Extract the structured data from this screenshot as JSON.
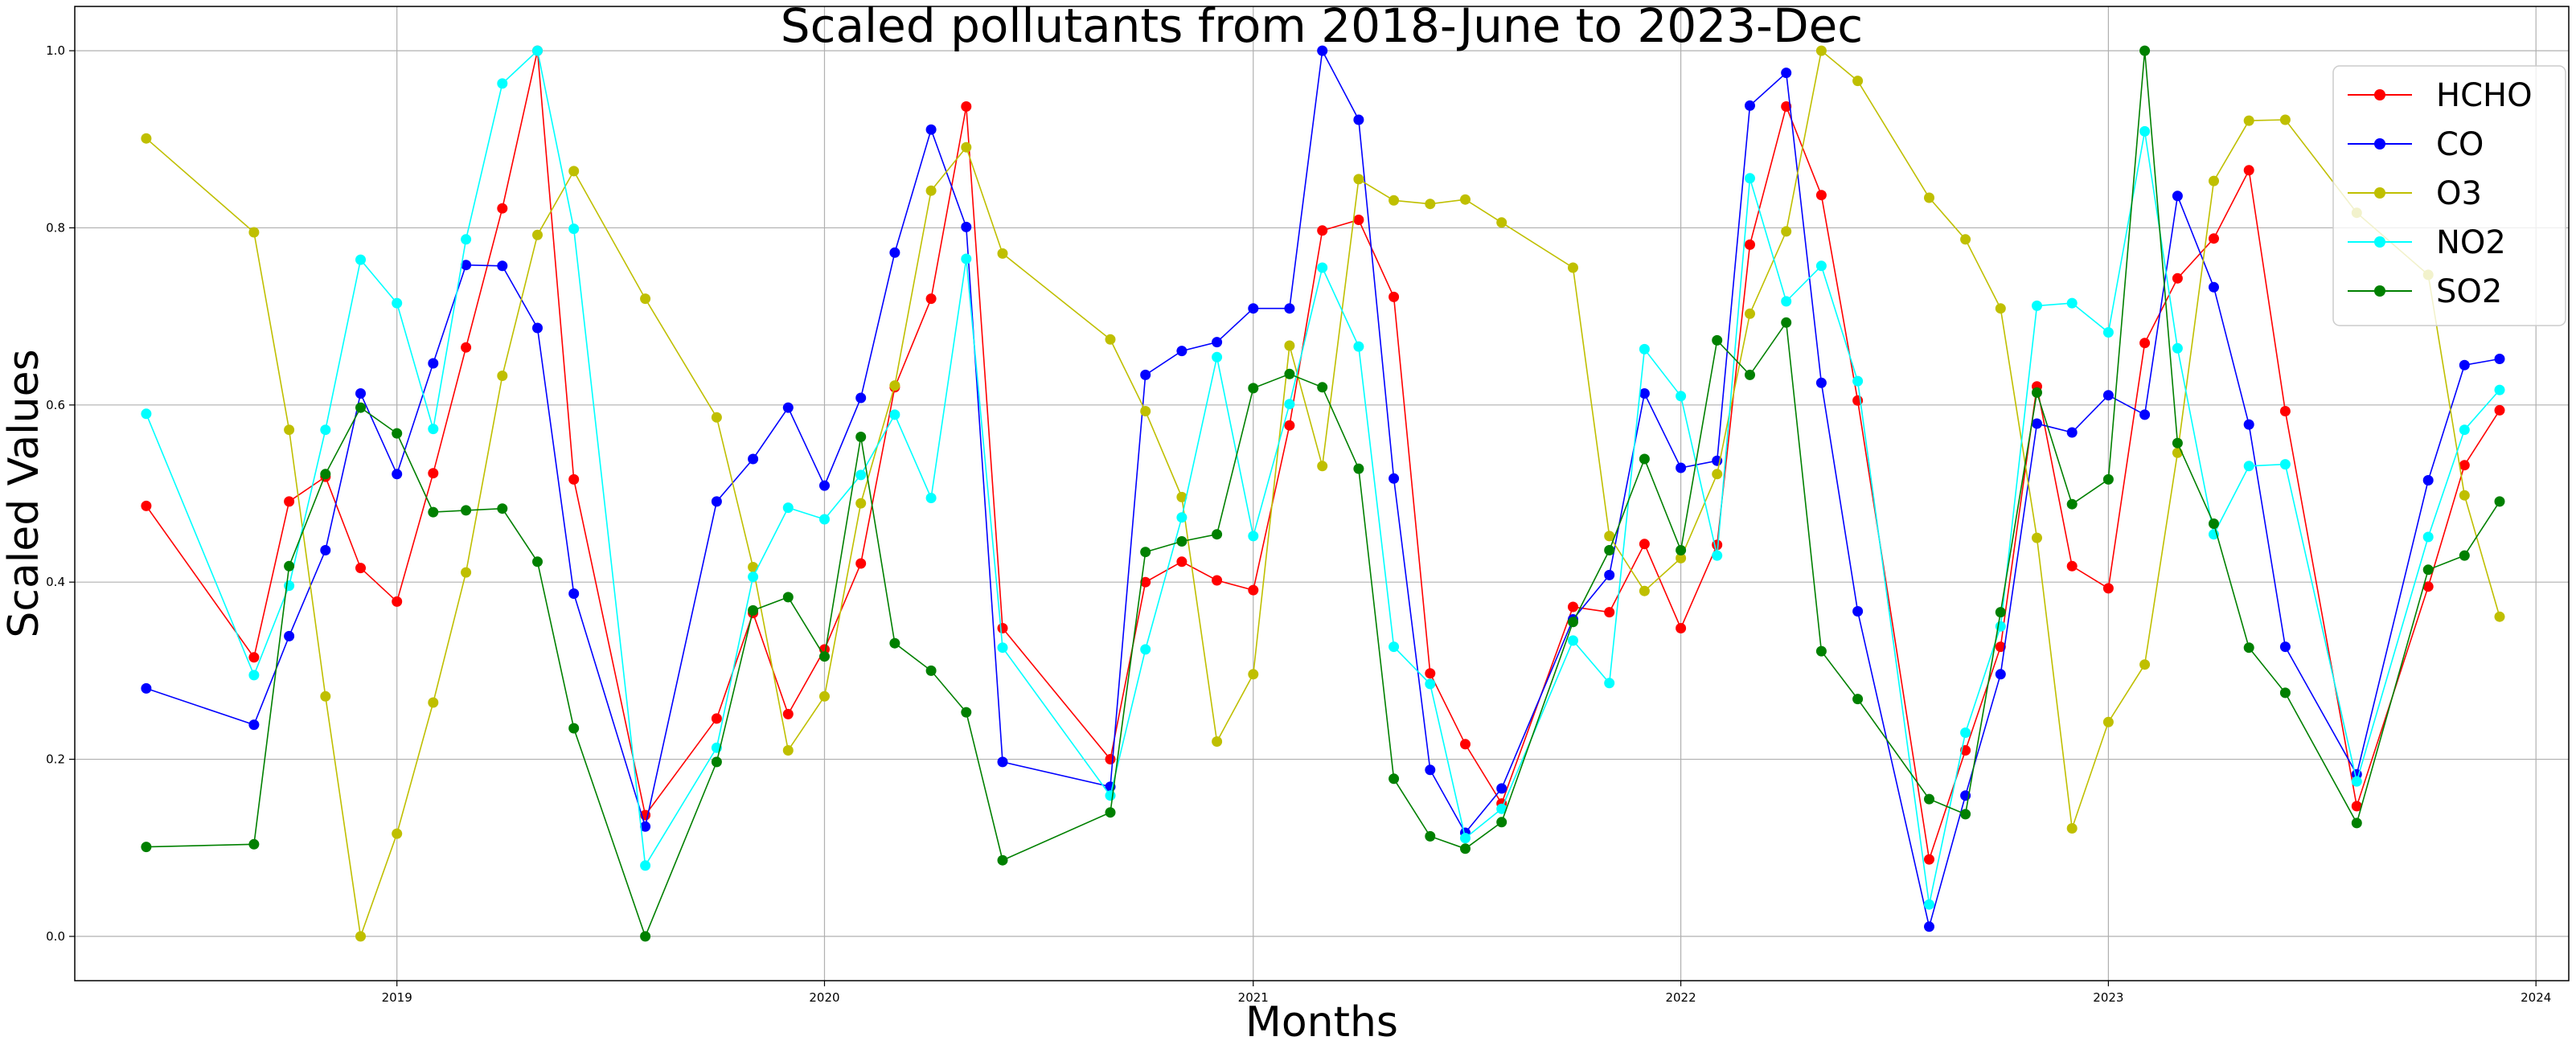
{
  "chart_data": {
    "type": "line",
    "title": "Scaled pollutants from 2018-June to 2023-Dec",
    "xlabel": "Months",
    "ylabel": "Scaled Values",
    "x_axis": "date",
    "xlim": [
      "2018-04-01",
      "2024-01-29"
    ],
    "ylim": [
      -0.05,
      1.05
    ],
    "x_ticks": [
      "2019",
      "2020",
      "2021",
      "2022",
      "2023",
      "2024"
    ],
    "y_ticks": [
      "0.0",
      "0.2",
      "0.4",
      "0.6",
      "0.8",
      "1.0"
    ],
    "grid": true,
    "legend_position": "top-right",
    "x": [
      "2018-06-01",
      "2018-09-01",
      "2018-10-01",
      "2018-11-01",
      "2018-12-01",
      "2019-01-01",
      "2019-02-01",
      "2019-03-01",
      "2019-04-01",
      "2019-05-01",
      "2019-06-01",
      "2019-08-01",
      "2019-10-01",
      "2019-11-01",
      "2019-12-01",
      "2020-01-01",
      "2020-02-01",
      "2020-03-01",
      "2020-04-01",
      "2020-05-01",
      "2020-06-01",
      "2020-09-01",
      "2020-10-01",
      "2020-11-01",
      "2020-12-01",
      "2021-01-01",
      "2021-02-01",
      "2021-03-01",
      "2021-04-01",
      "2021-05-01",
      "2021-06-01",
      "2021-07-01",
      "2021-08-01",
      "2021-10-01",
      "2021-11-01",
      "2021-12-01",
      "2022-01-01",
      "2022-02-01",
      "2022-03-01",
      "2022-04-01",
      "2022-05-01",
      "2022-06-01",
      "2022-08-01",
      "2022-09-01",
      "2022-10-01",
      "2022-11-01",
      "2022-12-01",
      "2023-01-01",
      "2023-02-01",
      "2023-03-01",
      "2023-04-01",
      "2023-05-01",
      "2023-06-01",
      "2023-08-01",
      "2023-10-01",
      "2023-11-01",
      "2023-12-01"
    ],
    "series": [
      {
        "name": "HCHO",
        "color": "#ff0000",
        "values": [
          0.486,
          0.315,
          0.491,
          0.519,
          0.416,
          0.378,
          0.523,
          0.665,
          0.822,
          1.0,
          0.516,
          0.137,
          0.246,
          0.365,
          0.251,
          0.324,
          0.421,
          0.62,
          0.72,
          0.937,
          0.348,
          0.2,
          0.4,
          0.423,
          0.402,
          0.391,
          0.577,
          0.797,
          0.809,
          0.722,
          0.297,
          0.217,
          0.15,
          0.372,
          0.366,
          0.443,
          0.348,
          0.442,
          0.781,
          0.937,
          0.837,
          0.605,
          0.087,
          0.21,
          0.327,
          0.621,
          0.418,
          0.393,
          0.67,
          0.743,
          0.788,
          0.865,
          0.593,
          0.147,
          0.395,
          0.532,
          0.594
        ]
      },
      {
        "name": "CO",
        "color": "#0000ff",
        "values": [
          0.28,
          0.239,
          0.339,
          0.436,
          0.613,
          0.522,
          0.647,
          0.758,
          0.757,
          0.687,
          0.387,
          0.124,
          0.491,
          0.539,
          0.597,
          0.509,
          0.608,
          0.772,
          0.911,
          0.801,
          0.197,
          0.169,
          0.634,
          0.661,
          0.671,
          0.709,
          0.709,
          1.0,
          0.922,
          0.517,
          0.188,
          0.117,
          0.167,
          0.358,
          0.408,
          0.613,
          0.529,
          0.537,
          0.938,
          0.975,
          0.625,
          0.367,
          0.011,
          0.159,
          0.296,
          0.579,
          0.569,
          0.611,
          0.589,
          0.836,
          0.733,
          0.578,
          0.327,
          0.183,
          0.515,
          0.645,
          0.652
        ]
      },
      {
        "name": "O3",
        "color": "#bfbf00",
        "values": [
          0.901,
          0.795,
          0.572,
          0.271,
          0.0,
          0.116,
          0.264,
          0.411,
          0.633,
          0.792,
          0.864,
          0.72,
          0.586,
          0.417,
          0.21,
          0.271,
          0.489,
          0.622,
          0.842,
          0.891,
          0.771,
          0.674,
          0.593,
          0.496,
          0.22,
          0.296,
          0.667,
          0.531,
          0.855,
          0.831,
          0.827,
          0.832,
          0.806,
          0.755,
          0.452,
          0.39,
          0.427,
          0.522,
          0.703,
          0.796,
          1.0,
          0.966,
          0.834,
          0.787,
          0.709,
          0.45,
          0.122,
          0.242,
          0.307,
          0.546,
          0.853,
          0.921,
          0.922,
          0.817,
          0.747,
          0.498,
          0.361
        ]
      },
      {
        "name": "NO2",
        "color": "#00ffff",
        "values": [
          0.59,
          0.295,
          0.396,
          0.572,
          0.764,
          0.715,
          0.573,
          0.787,
          0.963,
          1.0,
          0.799,
          0.08,
          0.213,
          0.406,
          0.484,
          0.471,
          0.521,
          0.589,
          0.495,
          0.765,
          0.326,
          0.159,
          0.324,
          0.473,
          0.654,
          0.452,
          0.601,
          0.755,
          0.666,
          0.327,
          0.285,
          0.111,
          0.144,
          0.334,
          0.286,
          0.663,
          0.61,
          0.43,
          0.856,
          0.717,
          0.757,
          0.627,
          0.036,
          0.23,
          0.35,
          0.712,
          0.715,
          0.682,
          0.909,
          0.664,
          0.454,
          0.531,
          0.533,
          0.175,
          0.451,
          0.572,
          0.617
        ]
      },
      {
        "name": "SO2",
        "color": "#008000",
        "values": [
          0.101,
          0.104,
          0.418,
          0.522,
          0.597,
          0.568,
          0.479,
          0.481,
          0.483,
          0.423,
          0.235,
          0.0,
          0.197,
          0.368,
          0.383,
          0.316,
          0.564,
          0.331,
          0.3,
          0.253,
          0.086,
          0.14,
          0.434,
          0.446,
          0.454,
          0.619,
          0.635,
          0.62,
          0.528,
          0.178,
          0.113,
          0.099,
          0.129,
          0.355,
          0.436,
          0.539,
          0.436,
          0.673,
          0.634,
          0.693,
          0.322,
          0.268,
          0.155,
          0.138,
          0.366,
          0.614,
          0.488,
          0.516,
          1.0,
          0.557,
          0.466,
          0.326,
          0.275,
          0.128,
          0.414,
          0.43,
          0.491
        ]
      }
    ]
  }
}
